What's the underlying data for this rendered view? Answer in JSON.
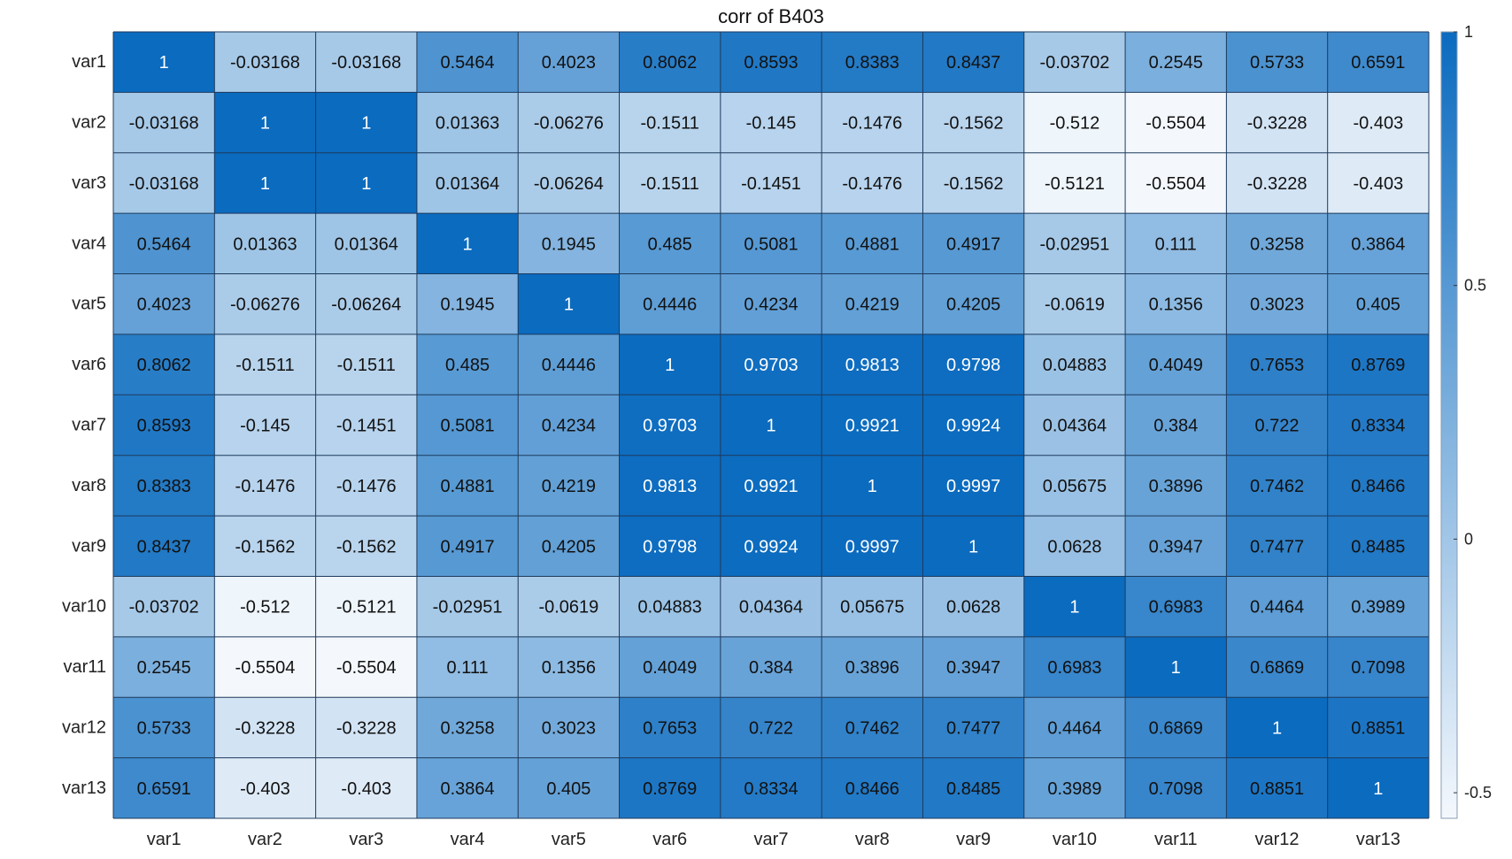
{
  "chart_data": {
    "type": "heatmap",
    "title": "corr of B403",
    "xlabels": [
      "var1",
      "var2",
      "var3",
      "var4",
      "var5",
      "var6",
      "var7",
      "var8",
      "var9",
      "var10",
      "var11",
      "var12",
      "var13"
    ],
    "ylabels": [
      "var1",
      "var2",
      "var3",
      "var4",
      "var5",
      "var6",
      "var7",
      "var8",
      "var9",
      "var10",
      "var11",
      "var12",
      "var13"
    ],
    "cell_labels": [
      [
        "1",
        "-0.03168",
        "-0.03168",
        "0.5464",
        "0.4023",
        "0.8062",
        "0.8593",
        "0.8383",
        "0.8437",
        "-0.03702",
        "0.2545",
        "0.5733",
        "0.6591"
      ],
      [
        "-0.03168",
        "1",
        "1",
        "0.01363",
        "-0.06276",
        "-0.1511",
        "-0.145",
        "-0.1476",
        "-0.1562",
        "-0.512",
        "-0.5504",
        "-0.3228",
        "-0.403"
      ],
      [
        "-0.03168",
        "1",
        "1",
        "0.01364",
        "-0.06264",
        "-0.1511",
        "-0.1451",
        "-0.1476",
        "-0.1562",
        "-0.5121",
        "-0.5504",
        "-0.3228",
        "-0.403"
      ],
      [
        "0.5464",
        "0.01363",
        "0.01364",
        "1",
        "0.1945",
        "0.485",
        "0.5081",
        "0.4881",
        "0.4917",
        "-0.02951",
        "0.111",
        "0.3258",
        "0.3864"
      ],
      [
        "0.4023",
        "-0.06276",
        "-0.06264",
        "0.1945",
        "1",
        "0.4446",
        "0.4234",
        "0.4219",
        "0.4205",
        "-0.0619",
        "0.1356",
        "0.3023",
        "0.405"
      ],
      [
        "0.8062",
        "-0.1511",
        "-0.1511",
        "0.485",
        "0.4446",
        "1",
        "0.9703",
        "0.9813",
        "0.9798",
        "0.04883",
        "0.4049",
        "0.7653",
        "0.8769"
      ],
      [
        "0.8593",
        "-0.145",
        "-0.1451",
        "0.5081",
        "0.4234",
        "0.9703",
        "1",
        "0.9921",
        "0.9924",
        "0.04364",
        "0.384",
        "0.722",
        "0.8334"
      ],
      [
        "0.8383",
        "-0.1476",
        "-0.1476",
        "0.4881",
        "0.4219",
        "0.9813",
        "0.9921",
        "1",
        "0.9997",
        "0.05675",
        "0.3896",
        "0.7462",
        "0.8466"
      ],
      [
        "0.8437",
        "-0.1562",
        "-0.1562",
        "0.4917",
        "0.4205",
        "0.9798",
        "0.9924",
        "0.9997",
        "1",
        "0.0628",
        "0.3947",
        "0.7477",
        "0.8485"
      ],
      [
        "-0.03702",
        "-0.512",
        "-0.5121",
        "-0.02951",
        "-0.0619",
        "0.04883",
        "0.04364",
        "0.05675",
        "0.0628",
        "1",
        "0.6983",
        "0.4464",
        "0.3989"
      ],
      [
        "0.2545",
        "-0.5504",
        "-0.5504",
        "0.111",
        "0.1356",
        "0.4049",
        "0.384",
        "0.3896",
        "0.3947",
        "0.6983",
        "1",
        "0.6869",
        "0.7098"
      ],
      [
        "0.5733",
        "-0.3228",
        "-0.3228",
        "0.3258",
        "0.3023",
        "0.7653",
        "0.722",
        "0.7462",
        "0.7477",
        "0.4464",
        "0.6869",
        "1",
        "0.8851"
      ],
      [
        "0.6591",
        "-0.403",
        "-0.403",
        "0.3864",
        "0.405",
        "0.8769",
        "0.8334",
        "0.8466",
        "0.8485",
        "0.3989",
        "0.7098",
        "0.8851",
        "1"
      ]
    ],
    "color_range": [
      -0.5504,
      1
    ],
    "colormap": {
      "low": "#f4f8fd",
      "high": "#0b6bbf"
    },
    "colorbar": {
      "ticks": [
        1,
        0.5,
        0,
        -0.5
      ],
      "tick_labels": [
        "1",
        "0.5",
        "0",
        "-0.5"
      ]
    },
    "text_colors": {
      "dark": "#111111",
      "light": "#ffffff"
    },
    "grid_color": "#1d3a5c"
  }
}
